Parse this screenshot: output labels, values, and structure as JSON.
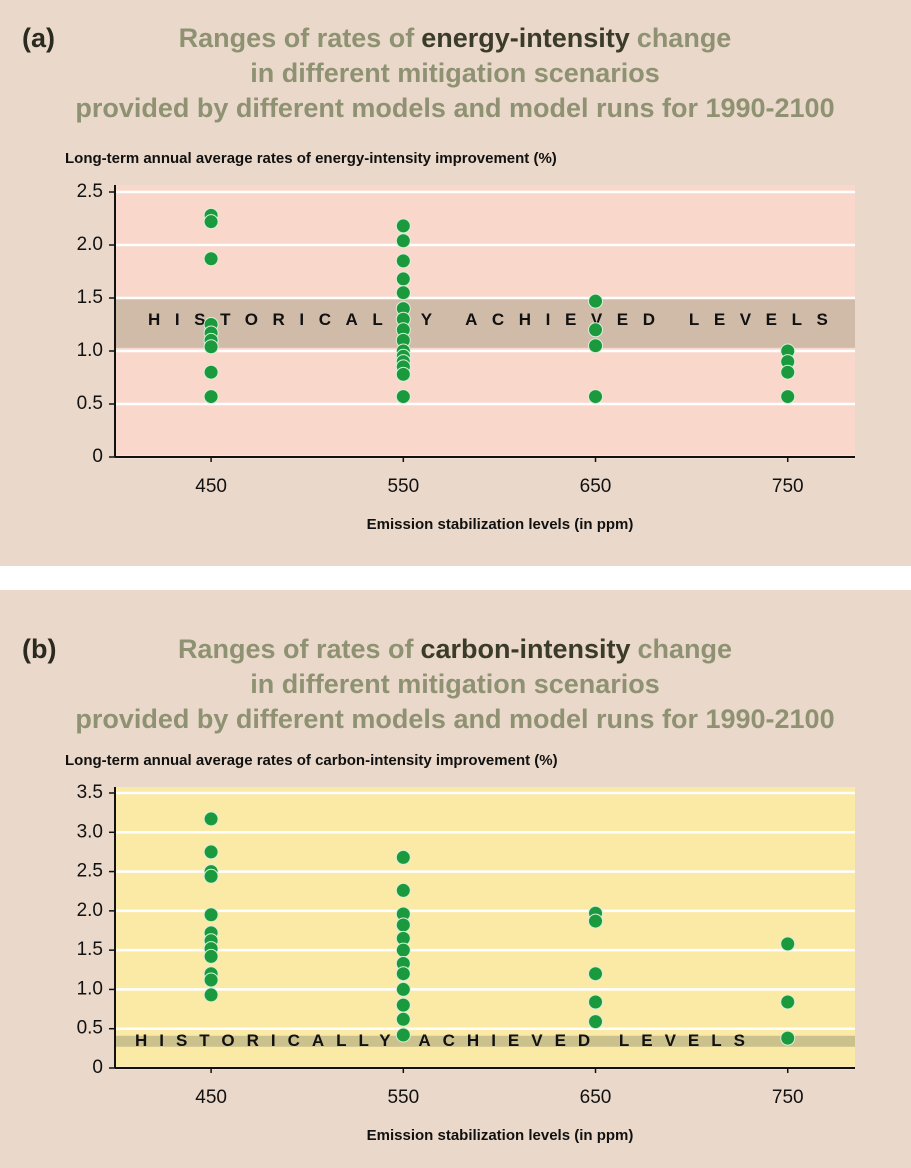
{
  "chart_data": [
    {
      "type": "scatter",
      "panel_label": "(a)",
      "title": [
        "Ranges of rates of",
        "energy-intensity",
        "change"
      ],
      "subtitle": [
        "in different mitigation scenarios",
        "provided by different models and model runs for 1990-2100"
      ],
      "ylabel": "Long-term annual average rates of energy-intensity improvement (%)",
      "xlabel": "Emission stabilization levels (in ppm)",
      "x": [
        450,
        450,
        450,
        450,
        450,
        450,
        450,
        450,
        450,
        550,
        550,
        550,
        550,
        550,
        550,
        550,
        550,
        550,
        550,
        550,
        550,
        550,
        550,
        550,
        650,
        650,
        650,
        650,
        750,
        750,
        750,
        750
      ],
      "values": [
        2.28,
        2.22,
        1.87,
        1.25,
        1.17,
        1.1,
        1.04,
        0.8,
        0.57,
        2.18,
        2.04,
        1.85,
        1.68,
        1.55,
        1.4,
        1.3,
        1.2,
        1.1,
        1.0,
        0.95,
        0.9,
        0.85,
        0.78,
        0.57,
        1.47,
        1.2,
        1.05,
        0.57,
        1.0,
        0.9,
        0.8,
        0.57
      ],
      "color": "#1a9a3c",
      "xlim": [
        400,
        785
      ],
      "xticks": [
        450,
        550,
        650,
        750
      ],
      "ylim": [
        0,
        2.5
      ],
      "yticks": [
        0,
        0.5,
        {
          "value": 1,
          "label": "1.0"
        },
        1.5,
        {
          "value": 2,
          "label": "2.0"
        },
        2.5
      ],
      "grid": true,
      "plot_color": "#f9d8cb",
      "band": {
        "label": "HISTORICALLY ACHIEVED LEVELS",
        "range": [
          1.03,
          1.49
        ],
        "color": "#cfbba8"
      }
    },
    {
      "type": "scatter",
      "panel_label": "(b)",
      "title": [
        "Ranges of rates of",
        "carbon-intensity",
        "change"
      ],
      "subtitle": [
        "in different mitigation scenarios",
        "provided by different models and model runs for 1990-2100"
      ],
      "ylabel": "Long-term annual average rates of carbon-intensity improvement (%)",
      "xlabel": "Emission stabilization levels (in ppm)",
      "x": [
        450,
        450,
        450,
        450,
        450,
        450,
        450,
        450,
        450,
        450,
        450,
        450,
        550,
        550,
        550,
        550,
        550,
        550,
        550,
        550,
        550,
        550,
        550,
        550,
        650,
        650,
        650,
        650,
        650,
        750,
        750,
        750
      ],
      "values": [
        3.17,
        2.75,
        2.5,
        2.44,
        1.95,
        1.72,
        1.62,
        1.52,
        1.42,
        1.2,
        1.12,
        0.93,
        2.68,
        2.26,
        1.96,
        1.82,
        1.65,
        1.5,
        1.33,
        1.2,
        1.0,
        0.8,
        0.62,
        0.42,
        1.97,
        1.87,
        1.2,
        0.84,
        0.59,
        1.58,
        0.84,
        0.38
      ],
      "color": "#1a9a3c",
      "xlim": [
        400,
        785
      ],
      "xticks": [
        450,
        550,
        650,
        750
      ],
      "ylim": [
        0,
        3.5
      ],
      "yticks": [
        0,
        0.5,
        {
          "value": 1,
          "label": "1.0"
        },
        1.5,
        {
          "value": 2,
          "label": "2.0"
        },
        2.5,
        {
          "value": 3,
          "label": "3.0"
        },
        3.5
      ],
      "grid": true,
      "plot_color": "#fbe9a6",
      "band": {
        "label": "HISTORICALLY ACHIEVED LEVELS",
        "range": [
          0.27,
          0.41
        ],
        "color": "#cbc18d"
      }
    }
  ]
}
